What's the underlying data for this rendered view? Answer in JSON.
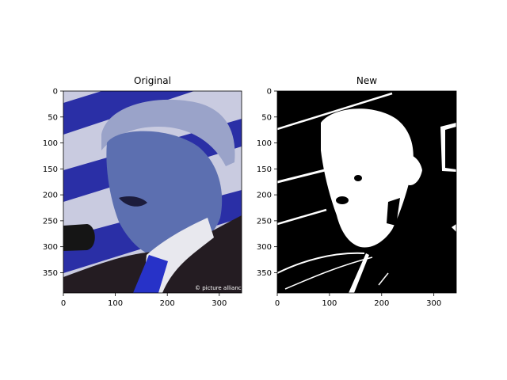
{
  "chart_data": [
    {
      "type": "image",
      "title": "Original",
      "xlim": [
        0,
        343
      ],
      "ylim": [
        389,
        0
      ],
      "xticks": [
        0,
        100,
        200,
        300
      ],
      "yticks": [
        0,
        50,
        100,
        150,
        200,
        250,
        300,
        350
      ],
      "watermark": "© picture alliance",
      "colors": {
        "stripe_blue": "#2a2fa6",
        "stripe_light": "#b8bbd9",
        "face": "#5c6fb0",
        "suit": "#241c22",
        "tie": "#2732c8"
      }
    },
    {
      "type": "image",
      "title": "New",
      "xlim": [
        0,
        343
      ],
      "ylim": [
        389,
        0
      ],
      "xticks": [
        0,
        100,
        200,
        300
      ],
      "yticks": [
        0,
        50,
        100,
        150,
        200,
        250,
        300,
        350
      ],
      "colors": {
        "background": "#000000",
        "foreground": "#ffffff"
      }
    }
  ]
}
